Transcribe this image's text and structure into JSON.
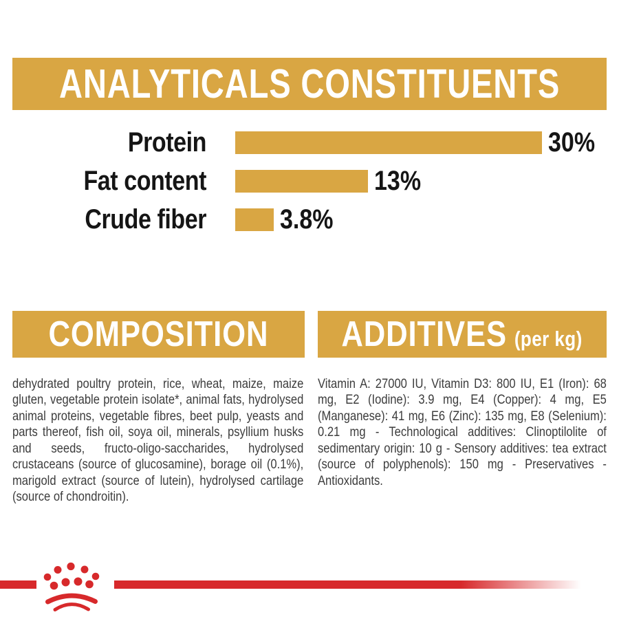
{
  "analyticals": {
    "title": "ANALYTICALS CONSTITUENTS"
  },
  "chart_data": {
    "type": "bar",
    "orientation": "horizontal",
    "title": "ANALYTICALS CONSTITUENTS",
    "categories": [
      "Protein",
      "Fat content",
      "Crude fiber"
    ],
    "values": [
      30,
      13,
      3.8
    ],
    "value_labels": [
      "30%",
      "13%",
      "3.8%"
    ],
    "xlim": [
      0,
      30
    ],
    "grid": false,
    "legend": false,
    "bar_color": "#D9A643"
  },
  "composition": {
    "title": "COMPOSITION",
    "body": "dehydrated poultry protein, rice, wheat, maize, maize gluten, vegetable protein isolate*, animal fats, hydrolysed animal proteins, vegetable fibres, beet pulp, yeasts and parts thereof, fish oil, soya oil, minerals, psyllium husks and seeds, fructo-oligo-saccharides, hydrolysed crustaceans (source of glucosamine), borage oil (0.1%), marigold extract (source of lutein), hydrolysed cartilage (source of chondroitin)."
  },
  "additives": {
    "title": "ADDITIVES",
    "unit": "(per kg)",
    "body": "Vitamin A: 27000 IU, Vitamin D3: 800 IU, E1 (Iron): 68 mg, E2 (Iodine): 3.9 mg, E4 (Copper): 4 mg, E5 (Manganese): 41 mg, E6 (Zinc): 135 mg, E8 (Selenium): 0.21 mg - Technological additives: Clinoptilolite of sedimentary origin: 10 g - Sensory additives: tea extract (source of polyphenols): 150 mg - Preservatives - Antioxidants."
  },
  "footer": {
    "logo": "royal-canin-crown"
  },
  "colors": {
    "gold": "#D9A643",
    "red": "#D7292B",
    "label_text": "#151515",
    "body_text": "#3C3C3C",
    "banner_text": "#FFFFFF"
  }
}
